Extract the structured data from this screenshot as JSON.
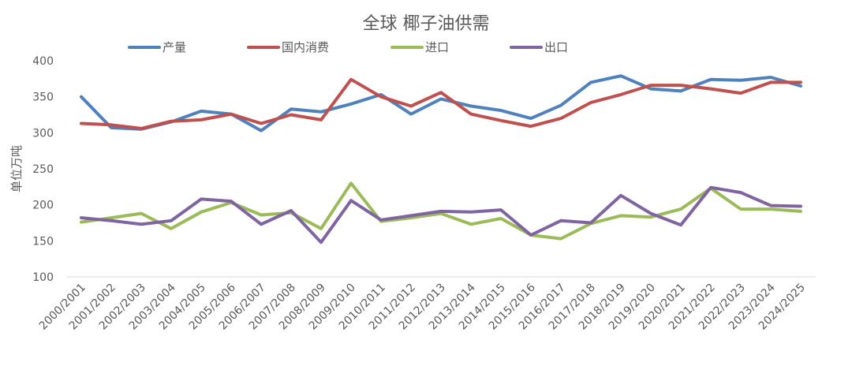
{
  "chart_data": {
    "type": "line",
    "title": "全球 椰子油供需",
    "ylabel": "单位万吨",
    "xlabel": "",
    "ylim": [
      100,
      400
    ],
    "yticks": [
      100,
      150,
      200,
      250,
      300,
      350,
      400
    ],
    "grid": false,
    "legend_position": "top",
    "categories": [
      "2000/2001",
      "2001/2002",
      "2002/2003",
      "2003/2004",
      "2004/2005",
      "2005/2006",
      "2006/2007",
      "2007/2008",
      "2008/2009",
      "2009/2010",
      "2010/2011",
      "2011/2012",
      "2012/2013",
      "2013/2014",
      "2014/2015",
      "2015/2016",
      "2016/2017",
      "2017/2018",
      "2018/2019",
      "2019/2020",
      "2020/2021",
      "2021/2022",
      "2022/2023",
      "2023/2024",
      "2024/2025"
    ],
    "series": [
      {
        "name": "产量",
        "color": "#4f81bd",
        "values": [
          350,
          307,
          305,
          315,
          330,
          326,
          303,
          333,
          329,
          340,
          353,
          326,
          347,
          337,
          331,
          320,
          338,
          370,
          379,
          361,
          358,
          374,
          373,
          377,
          365
        ]
      },
      {
        "name": "国内消费",
        "color": "#c0504d",
        "values": [
          313,
          311,
          306,
          316,
          318,
          326,
          313,
          325,
          318,
          374,
          350,
          337,
          356,
          326,
          317,
          309,
          320,
          342,
          353,
          366,
          366,
          361,
          355,
          370,
          370
        ]
      },
      {
        "name": "进口",
        "color": "#9bbb59",
        "values": [
          176,
          182,
          188,
          167,
          190,
          203,
          186,
          189,
          167,
          230,
          177,
          182,
          188,
          173,
          181,
          158,
          153,
          174,
          185,
          183,
          194,
          223,
          194,
          194,
          191
        ]
      },
      {
        "name": "出口",
        "color": "#8064a2",
        "values": [
          182,
          178,
          173,
          178,
          208,
          205,
          173,
          192,
          148,
          206,
          179,
          185,
          191,
          190,
          193,
          158,
          178,
          175,
          213,
          188,
          172,
          224,
          217,
          199,
          198
        ]
      }
    ]
  }
}
